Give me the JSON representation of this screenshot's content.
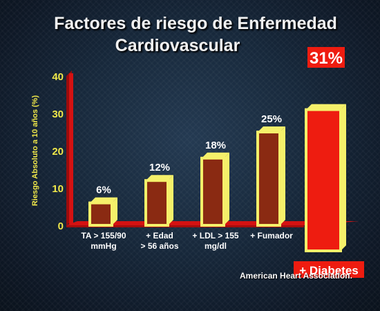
{
  "title_line1": "Factores de riesgo de Enfermedad",
  "title_line2": "Cardiovascular",
  "source": "American Heart Association.",
  "colors": {
    "bar_face": "#8a2a12",
    "bar_edge": "#f5f06a",
    "highlight_face": "#ee1c10",
    "axis_wall": "#d41212",
    "axis_text": "#f0e84a",
    "label_text": "#ffffff",
    "badge_bg": "#ee1c10"
  },
  "chart_data": {
    "type": "bar",
    "title": "Factores de riesgo de Enfermedad Cardiovascular",
    "ylabel": "Riesgo  Absoluto a 10 años (%)",
    "ylim": [
      0,
      40
    ],
    "yticks": [
      "0",
      "10",
      "20",
      "30",
      "40"
    ],
    "categories": [
      [
        "TA > 155/90",
        "mmHg"
      ],
      [
        "+ Edad",
        "> 56 años"
      ],
      [
        "+ LDL > 155",
        "mg/dl"
      ],
      [
        "+ Fumador"
      ],
      [
        "+ Diabetes"
      ]
    ],
    "values": [
      6,
      12,
      18,
      25,
      31
    ],
    "value_labels": [
      "6%",
      "12%",
      "18%",
      "25%",
      "31%"
    ]
  }
}
